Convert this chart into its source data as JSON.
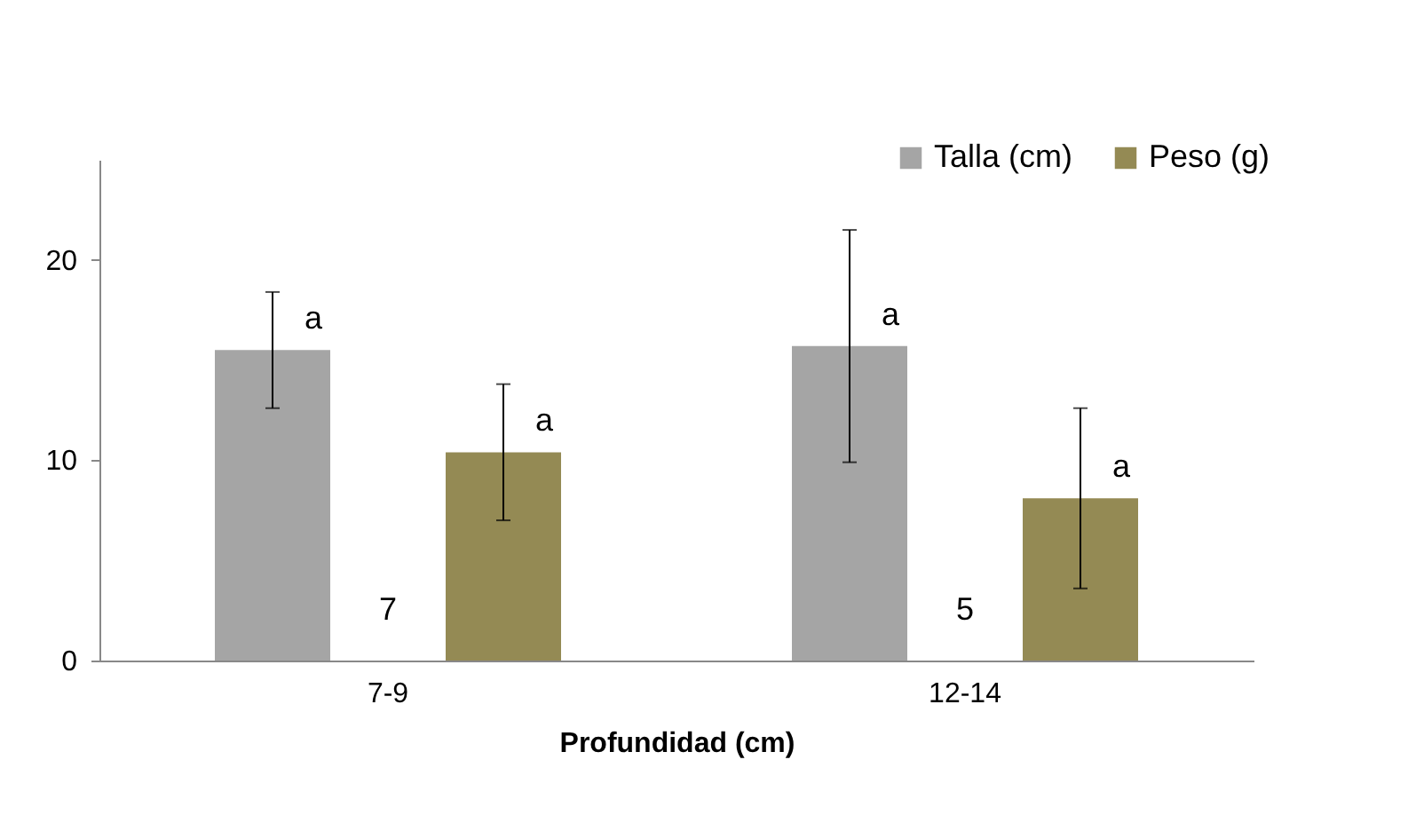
{
  "chart_data": {
    "type": "bar",
    "xlabel": "Profundidad (cm)",
    "categories": [
      "7-9",
      "12-14"
    ],
    "series": [
      {
        "name": "Talla (cm)",
        "color": "#a5a5a5",
        "values": [
          15.5,
          15.7
        ],
        "errors": [
          2.9,
          5.8
        ],
        "value_labels": [
          "a",
          "a"
        ]
      },
      {
        "name": "Peso (g)",
        "color": "#948a54",
        "values": [
          10.4,
          8.1
        ],
        "errors": [
          3.4,
          4.5
        ],
        "value_labels": [
          "a",
          "a"
        ]
      }
    ],
    "ylim": [
      0,
      25
    ],
    "yticks": [
      0,
      10,
      20
    ],
    "grid": false,
    "legend": "top right",
    "annotations": [
      "7",
      "5"
    ]
  }
}
